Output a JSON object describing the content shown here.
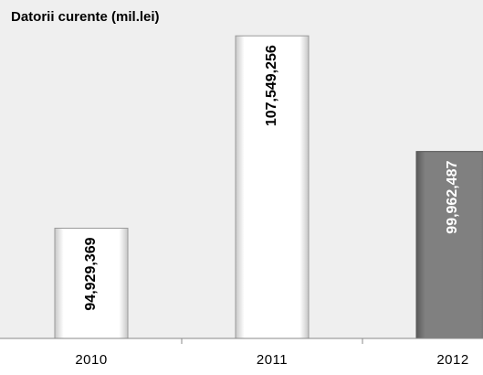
{
  "chart_data": {
    "type": "bar",
    "title": "Datorii curente (mil.lei)",
    "categories": [
      "2010",
      "2011",
      "2012"
    ],
    "values": [
      94929369,
      107549256,
      99962487
    ],
    "value_labels": [
      "94,929,369",
      "107,549,256",
      "99,962,487"
    ],
    "colors": [
      "#ffffff",
      "#ffffff",
      "#7f7f7f"
    ],
    "ylim": [
      87700000,
      109300000
    ]
  }
}
